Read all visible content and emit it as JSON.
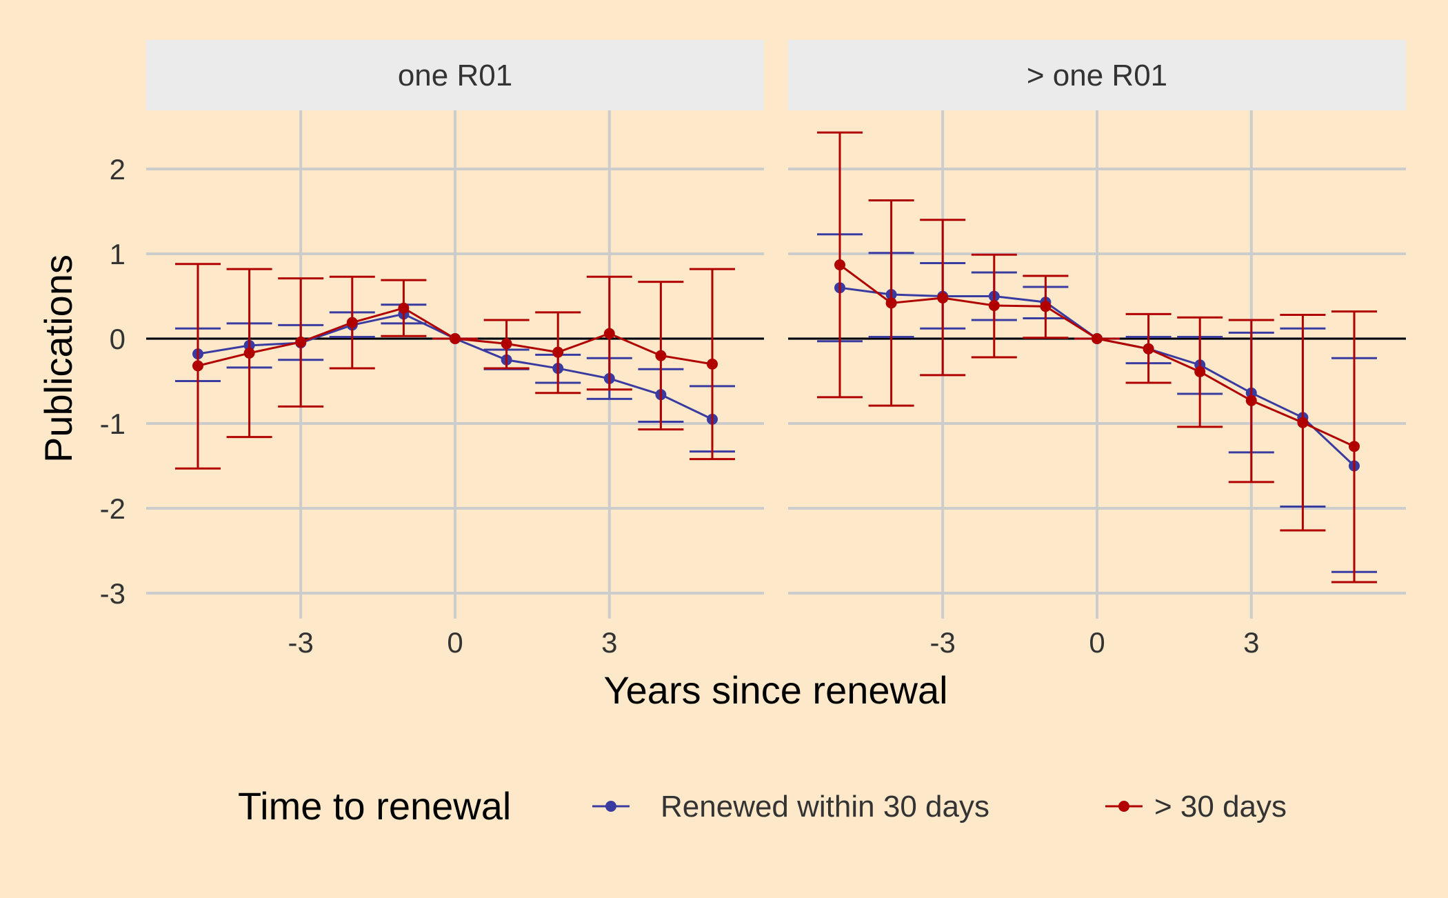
{
  "chart_data": {
    "type": "line",
    "subtype": "point-range with error bars, faceted",
    "xlabel": "Years since renewal",
    "ylabel": "Publications",
    "x_ticks": [
      "-3",
      "0",
      "3"
    ],
    "y_ticks": [
      "2",
      "1",
      "0",
      "-1",
      "-2",
      "-3"
    ],
    "xlim": [
      -6,
      6
    ],
    "ylim": [
      -3,
      2.6
    ],
    "grid": true,
    "reference_line_y": 0,
    "legend": {
      "title": "Time to renewal",
      "position": "bottom",
      "entries": [
        "Renewed within 30 days",
        "> 30 days"
      ]
    },
    "colors": {
      "Renewed within 30 days": "#3a3ba0",
      "> 30 days": "#b00000"
    },
    "x": [
      -5,
      -4,
      -3,
      -2,
      -1,
      0,
      1,
      2,
      3,
      4,
      5
    ],
    "facets": [
      {
        "label": "one R01",
        "series": [
          {
            "name": "Renewed within 30 days",
            "y": [
              -0.18,
              -0.08,
              -0.05,
              0.16,
              0.29,
              0.0,
              -0.25,
              -0.35,
              -0.47,
              -0.66,
              -0.95
            ],
            "lower": [
              -0.5,
              -0.34,
              -0.25,
              0.02,
              0.18,
              0.0,
              -0.36,
              -0.52,
              -0.71,
              -0.98,
              -1.33
            ],
            "upper": [
              0.12,
              0.18,
              0.16,
              0.31,
              0.4,
              0.0,
              -0.13,
              -0.19,
              -0.23,
              -0.36,
              -0.56
            ]
          },
          {
            "name": "> 30 days",
            "y": [
              -0.32,
              -0.17,
              -0.04,
              0.19,
              0.36,
              0.0,
              -0.06,
              -0.16,
              0.06,
              -0.2,
              -0.3
            ],
            "lower": [
              -1.53,
              -1.16,
              -0.8,
              -0.35,
              0.03,
              0.0,
              -0.35,
              -0.64,
              -0.6,
              -1.07,
              -1.42
            ],
            "upper": [
              0.88,
              0.82,
              0.71,
              0.73,
              0.69,
              0.0,
              0.22,
              0.31,
              0.73,
              0.67,
              0.82
            ]
          }
        ]
      },
      {
        "label": "> one R01",
        "series": [
          {
            "name": "Renewed within 30 days",
            "y": [
              0.6,
              0.52,
              0.5,
              0.5,
              0.43,
              0.0,
              -0.12,
              -0.31,
              -0.64,
              -0.93,
              -1.5
            ],
            "lower": [
              -0.03,
              0.02,
              0.12,
              0.22,
              0.24,
              0.0,
              -0.29,
              -0.65,
              -1.34,
              -1.98,
              -2.75
            ],
            "upper": [
              1.23,
              1.01,
              0.89,
              0.78,
              0.61,
              0.0,
              0.02,
              0.02,
              0.07,
              0.12,
              -0.23
            ]
          },
          {
            "name": "> 30 days",
            "y": [
              0.87,
              0.42,
              0.48,
              0.39,
              0.38,
              0.0,
              -0.12,
              -0.39,
              -0.73,
              -0.99,
              -1.27
            ],
            "lower": [
              -0.69,
              -0.79,
              -0.43,
              -0.22,
              0.01,
              0.0,
              -0.52,
              -1.04,
              -1.69,
              -2.26,
              -2.87
            ],
            "upper": [
              2.43,
              1.63,
              1.4,
              0.99,
              0.74,
              0.0,
              0.29,
              0.25,
              0.22,
              0.28,
              0.32
            ]
          }
        ]
      }
    ]
  }
}
